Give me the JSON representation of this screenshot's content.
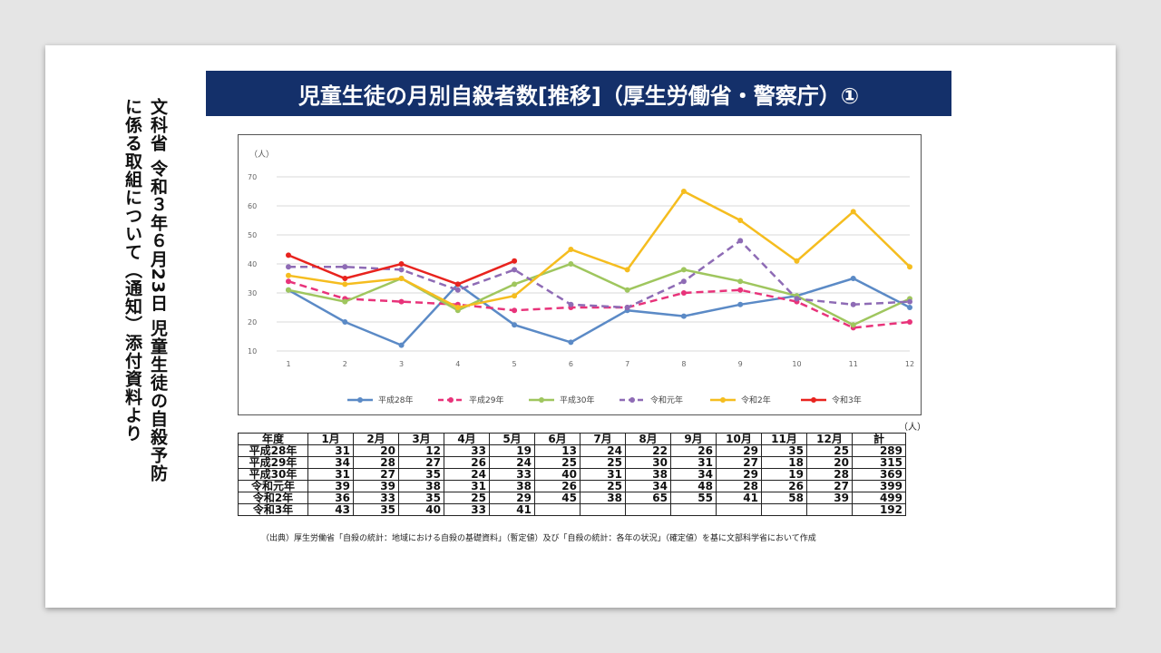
{
  "side_text": {
    "line1": "文科省 令和３年６月23日 児童生徒の自殺予防",
    "line2": "に係る取組について（通知）添付資料より"
  },
  "title": "児童生徒の月別自殺者数[推移]（厚生労働省・警察庁）①",
  "chart_data": {
    "type": "line",
    "ylabel": "（人）",
    "yticks": [
      10,
      20,
      30,
      40,
      50,
      60,
      70
    ],
    "ylim": [
      10,
      70
    ],
    "x": [
      1,
      2,
      3,
      4,
      5,
      6,
      7,
      8,
      9,
      10,
      11,
      12
    ],
    "grid": true,
    "legend_position": "bottom",
    "series": [
      {
        "name": "平成28年",
        "color": "#5b8ac6",
        "dashed": false,
        "values": [
          31,
          20,
          12,
          33,
          19,
          13,
          24,
          22,
          26,
          29,
          35,
          25
        ]
      },
      {
        "name": "平成29年",
        "color": "#e8337a",
        "dashed": true,
        "values": [
          34,
          28,
          27,
          26,
          24,
          25,
          25,
          30,
          31,
          27,
          18,
          20
        ]
      },
      {
        "name": "平成30年",
        "color": "#9fc65e",
        "dashed": false,
        "values": [
          31,
          27,
          35,
          24,
          33,
          40,
          31,
          38,
          34,
          29,
          19,
          28
        ]
      },
      {
        "name": "令和元年",
        "color": "#8e6bb5",
        "dashed": true,
        "values": [
          39,
          39,
          38,
          31,
          38,
          26,
          25,
          34,
          48,
          28,
          26,
          27
        ]
      },
      {
        "name": "令和2年",
        "color": "#f5bd1f",
        "dashed": false,
        "values": [
          36,
          33,
          35,
          25,
          29,
          45,
          38,
          65,
          55,
          41,
          58,
          39
        ]
      },
      {
        "name": "令和3年",
        "color": "#e8231e",
        "dashed": false,
        "values": [
          43,
          35,
          40,
          33,
          41,
          null,
          null,
          null,
          null,
          null,
          null,
          null
        ]
      }
    ]
  },
  "table": {
    "unit": "（人）",
    "headers": [
      "年度",
      "1月",
      "2月",
      "3月",
      "4月",
      "5月",
      "6月",
      "7月",
      "8月",
      "9月",
      "10月",
      "11月",
      "12月",
      "計"
    ],
    "rows": [
      [
        "平成28年",
        "31",
        "20",
        "12",
        "33",
        "19",
        "13",
        "24",
        "22",
        "26",
        "29",
        "35",
        "25",
        "289"
      ],
      [
        "平成29年",
        "34",
        "28",
        "27",
        "26",
        "24",
        "25",
        "25",
        "30",
        "31",
        "27",
        "18",
        "20",
        "315"
      ],
      [
        "平成30年",
        "31",
        "27",
        "35",
        "24",
        "33",
        "40",
        "31",
        "38",
        "34",
        "29",
        "19",
        "28",
        "369"
      ],
      [
        "令和元年",
        "39",
        "39",
        "38",
        "31",
        "38",
        "26",
        "25",
        "34",
        "48",
        "28",
        "26",
        "27",
        "399"
      ],
      [
        "令和2年",
        "36",
        "33",
        "35",
        "25",
        "29",
        "45",
        "38",
        "65",
        "55",
        "41",
        "58",
        "39",
        "499"
      ],
      [
        "令和3年",
        "43",
        "35",
        "40",
        "33",
        "41",
        "",
        "",
        "",
        "",
        "",
        "",
        "",
        "192"
      ]
    ]
  },
  "source": "（出典）厚生労働省「自殺の統計：地域における自殺の基礎資料」（暫定値）及び「自殺の統計：各年の状況」（確定値）を基に文部科学省において作成"
}
